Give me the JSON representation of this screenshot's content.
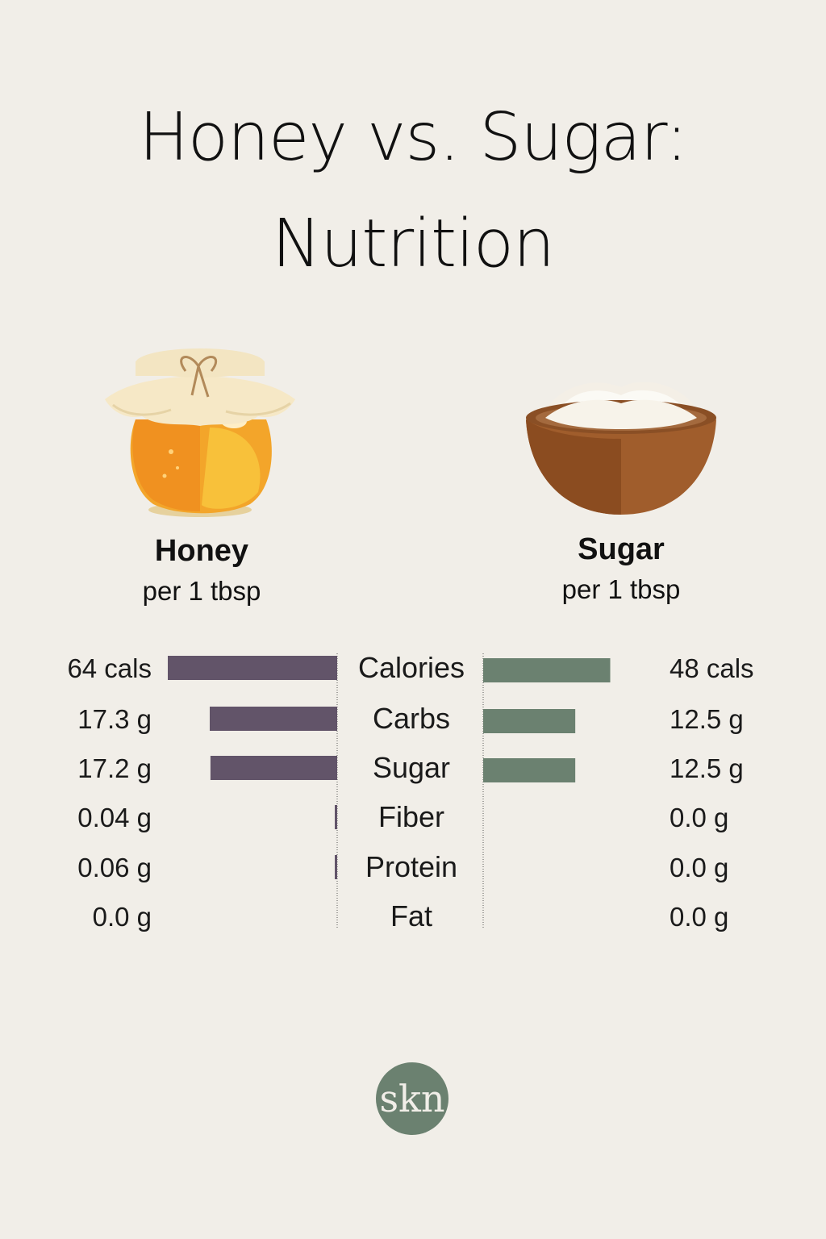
{
  "title_line1": "Honey vs. Sugar:",
  "title_line2": "Nutrition",
  "honey": {
    "name": "Honey",
    "serving": "per 1 tbsp"
  },
  "sugar": {
    "name": "Sugar",
    "serving": "per 1 tbsp"
  },
  "logo_text": "skn",
  "colors": {
    "honey_bar": "#625469",
    "sugar_bar": "#6b8170",
    "background": "#f1eee8"
  },
  "chart_data": {
    "type": "bar",
    "orientation": "horizontal-diverging",
    "categories": [
      "Calories",
      "Carbs",
      "Sugar",
      "Fiber",
      "Protein",
      "Fat"
    ],
    "series": [
      {
        "name": "Honey",
        "values": [
          64,
          17.3,
          17.2,
          0.04,
          0.06,
          0.0
        ],
        "labels": [
          "64 cals",
          "17.3 g",
          "17.2 g",
          "0.04 g",
          "0.06 g",
          "0.0 g"
        ]
      },
      {
        "name": "Sugar",
        "values": [
          48,
          12.5,
          12.5,
          0.0,
          0.0,
          0.0
        ],
        "labels": [
          "48 cals",
          "12.5 g",
          "12.5 g",
          "0.0 g",
          "0.0 g",
          "0.0 g"
        ]
      }
    ],
    "title": "Honey vs. Sugar: Nutrition",
    "xlabel": "",
    "ylabel": ""
  }
}
